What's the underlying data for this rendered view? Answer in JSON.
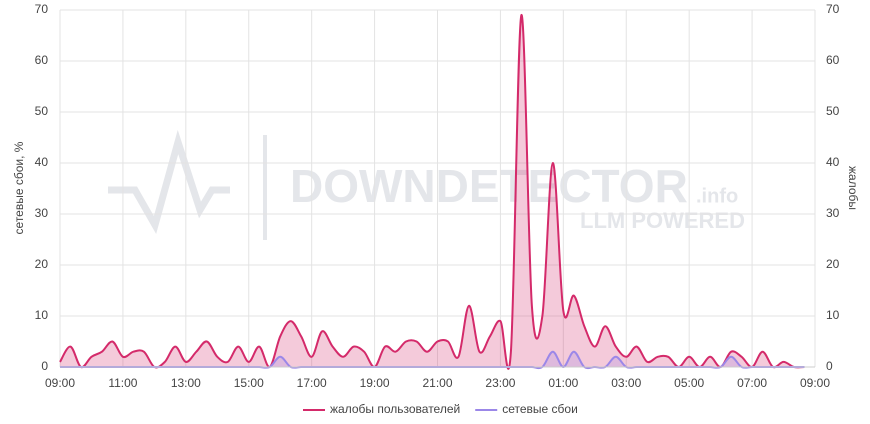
{
  "chart_data": {
    "type": "line",
    "y_label": "сетевые сбои, %",
    "y2_label": "жалобы",
    "watermark": {
      "text": "DOWNDETECTOR",
      "suffix": ".info",
      "tagline": "LLM POWERED"
    },
    "x": [
      "09:00",
      "09:20",
      "09:40",
      "10:00",
      "10:20",
      "10:40",
      "11:00",
      "11:20",
      "11:40",
      "12:00",
      "12:20",
      "12:40",
      "13:00",
      "13:20",
      "13:40",
      "14:00",
      "14:20",
      "14:40",
      "15:00",
      "15:20",
      "15:40",
      "16:00",
      "16:20",
      "16:40",
      "17:00",
      "17:20",
      "17:40",
      "18:00",
      "18:20",
      "18:40",
      "19:00",
      "19:20",
      "19:40",
      "20:00",
      "20:20",
      "20:40",
      "21:00",
      "21:20",
      "21:40",
      "22:00",
      "22:20",
      "22:40",
      "23:00",
      "23:20",
      "23:40",
      "00:00",
      "00:20",
      "00:40",
      "01:00",
      "01:20",
      "01:40",
      "02:00",
      "02:20",
      "02:40",
      "03:00",
      "03:20",
      "03:40",
      "04:00",
      "04:20",
      "04:40",
      "05:00",
      "05:20",
      "05:40",
      "06:00",
      "06:20",
      "06:40",
      "07:00",
      "07:20",
      "07:40",
      "08:00",
      "08:20",
      "08:40"
    ],
    "series": [
      {
        "name": "жалобы пользователей",
        "color": "#d42a6a",
        "axis": "y2",
        "values": [
          1,
          4,
          0,
          2,
          3,
          5,
          2,
          3,
          3,
          0,
          1,
          4,
          1,
          3,
          5,
          2,
          1,
          4,
          1,
          4,
          0,
          6,
          9,
          6,
          2,
          7,
          4,
          2,
          4,
          3,
          0,
          4,
          3,
          5,
          5,
          3,
          5,
          5,
          2,
          12,
          3,
          6,
          9,
          3,
          69,
          12,
          10,
          40,
          11,
          14,
          8,
          4,
          8,
          4,
          2,
          4,
          1,
          2,
          2,
          0,
          2,
          0,
          2,
          0,
          3,
          2,
          0,
          3,
          0,
          1,
          0,
          0
        ]
      },
      {
        "name": "сетевые сбои",
        "color": "#9b87e8",
        "values": [
          0,
          0,
          0,
          0,
          0,
          0,
          0,
          0,
          0,
          0,
          0,
          0,
          0,
          0,
          0,
          0,
          0,
          0,
          0,
          0,
          0,
          2,
          0,
          0,
          0,
          0,
          0,
          0,
          0,
          0,
          0,
          0,
          0,
          0,
          0,
          0,
          0,
          0,
          0,
          0,
          0,
          0,
          0,
          0,
          0,
          0,
          0,
          3,
          0,
          3,
          0,
          0,
          0,
          2,
          0,
          0,
          0,
          0,
          0,
          0,
          0,
          0,
          0,
          0,
          2,
          0,
          0,
          0,
          0,
          0,
          0,
          0
        ]
      }
    ],
    "xticks": [
      "09:00",
      "11:00",
      "13:00",
      "15:00",
      "17:00",
      "19:00",
      "21:00",
      "23:00",
      "01:00",
      "03:00",
      "05:00",
      "07:00",
      "09:00"
    ],
    "ylim": [
      0,
      70
    ],
    "yticks": [
      0,
      10,
      20,
      30,
      40,
      50,
      60,
      70
    ],
    "y2lim": [
      0,
      70
    ],
    "y2ticks": [
      0,
      10,
      20,
      30,
      40,
      50,
      60,
      70
    ],
    "grid": true
  }
}
